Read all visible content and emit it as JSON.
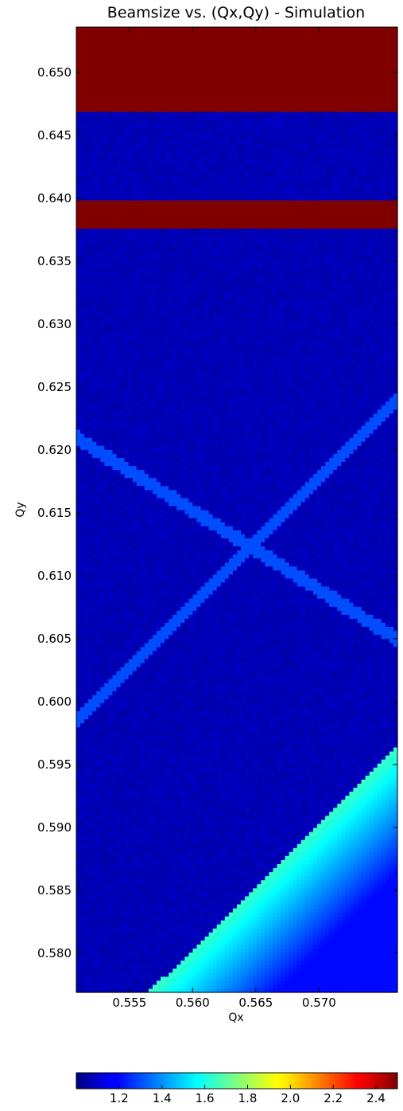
{
  "chart_data": {
    "type": "heatmap",
    "title": "Beamsize vs. (Qx,Qy) - Simulation",
    "xlabel": "Qx",
    "ylabel": "Qy",
    "xlim": [
      0.5508,
      0.5762
    ],
    "ylim": [
      0.5769,
      0.6536
    ],
    "xticks": [
      0.555,
      0.56,
      0.565,
      0.57
    ],
    "xtick_labels": [
      "0.555",
      "0.560",
      "0.565",
      "0.570"
    ],
    "yticks": [
      0.58,
      0.585,
      0.59,
      0.595,
      0.6,
      0.605,
      0.61,
      0.615,
      0.62,
      0.625,
      0.63,
      0.635,
      0.64,
      0.645,
      0.65
    ],
    "ytick_labels": [
      "0.580",
      "0.585",
      "0.590",
      "0.595",
      "0.600",
      "0.605",
      "0.610",
      "0.615",
      "0.620",
      "0.625",
      "0.630",
      "0.635",
      "0.640",
      "0.645",
      "0.650"
    ],
    "colormap": "jet",
    "colorbar": {
      "range": [
        1.0,
        2.5
      ],
      "orientation": "horizontal",
      "placement": "bottom",
      "ticks": [
        1.2,
        1.4,
        1.6,
        1.8,
        2.0,
        2.2,
        2.4
      ],
      "tick_labels": [
        "1.2",
        "1.4",
        "1.6",
        "1.8",
        "2.0",
        "2.2",
        "2.4"
      ]
    },
    "grid": false,
    "background_value": 1.08,
    "regions": [
      {
        "name": "top saturated band",
        "qy_range": [
          0.6468,
          0.6536
        ],
        "value": 2.5
      },
      {
        "name": "middle saturated band",
        "qy_range": [
          0.6376,
          0.64
        ],
        "value": 2.5
      },
      {
        "name": "low-Qy stopband edge",
        "boundary": [
          [
            0.5565,
            0.5769
          ],
          [
            0.5762,
            0.5965
          ]
        ],
        "value_at_edge": 1.65,
        "value_far": 1.2
      }
    ],
    "resonance_lines": [
      {
        "from": [
          0.5508,
          0.621
        ],
        "to": [
          0.5762,
          0.605
        ],
        "value": 1.3
      },
      {
        "from": [
          0.5508,
          0.5985
        ],
        "to": [
          0.5762,
          0.624
        ],
        "value": 1.3
      }
    ]
  }
}
